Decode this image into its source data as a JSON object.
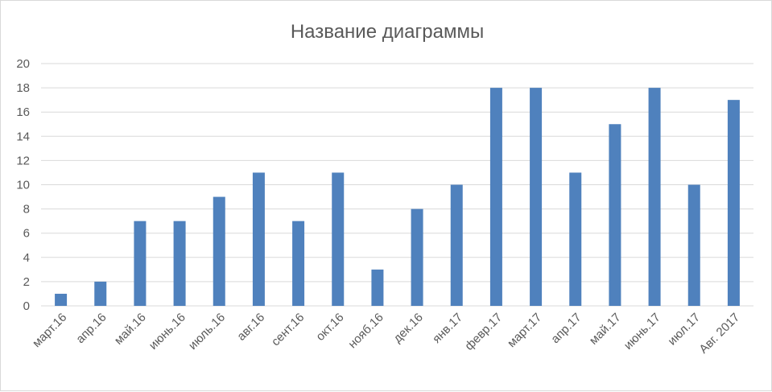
{
  "chart_data": {
    "type": "bar",
    "title": "Название диаграммы",
    "xlabel": "",
    "ylabel": "",
    "ylim": [
      0,
      20
    ],
    "yticks": [
      0,
      2,
      4,
      6,
      8,
      10,
      12,
      14,
      16,
      18,
      20
    ],
    "grid": true,
    "legend": "none",
    "bar_color": "#4f81bd",
    "categories": [
      "март.16",
      "апр.16",
      "май.16",
      "июнь.16",
      "июль.16",
      "авг.16",
      "сент.16",
      "окт.16",
      "нояб.16",
      "дек.16",
      "янв.17",
      "февр.17",
      "март.17",
      "апр.17",
      "май.17",
      "июнь.17",
      "июл.17",
      "Авг. 2017"
    ],
    "values": [
      1,
      2,
      7,
      7,
      9,
      11,
      7,
      11,
      3,
      8,
      10,
      18,
      18,
      11,
      15,
      18,
      10,
      17
    ]
  }
}
